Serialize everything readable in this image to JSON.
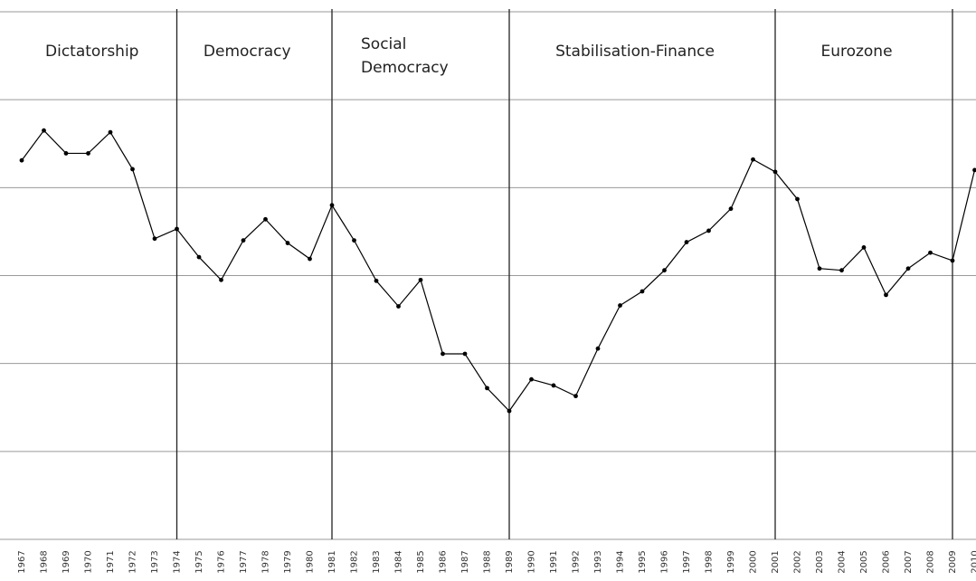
{
  "chart_data": {
    "type": "line",
    "x": [
      1967,
      1968,
      1969,
      1970,
      1971,
      1972,
      1973,
      1974,
      1975,
      1976,
      1977,
      1978,
      1979,
      1980,
      1981,
      1982,
      1983,
      1984,
      1985,
      1986,
      1987,
      1988,
      1989,
      1990,
      1991,
      1992,
      1993,
      1994,
      1995,
      1996,
      1997,
      1998,
      1999,
      2000,
      2001,
      2002,
      2003,
      2004,
      2005,
      2006,
      2007,
      2008,
      2009,
      2010
    ],
    "series": [
      {
        "color": "#000000",
        "values": [
          4.31,
          4.65,
          4.39,
          4.39,
          4.63,
          4.21,
          3.42,
          3.53,
          3.21,
          2.95,
          3.4,
          3.64,
          3.37,
          3.19,
          3.8,
          3.4,
          2.94,
          2.65,
          2.95,
          2.11,
          2.11,
          1.72,
          1.46,
          1.82,
          1.75,
          1.63,
          2.17,
          2.66,
          2.82,
          3.06,
          3.38,
          3.51,
          3.76,
          4.32,
          4.18,
          3.87,
          3.08,
          3.06,
          3.32,
          2.78,
          3.08,
          3.26,
          3.17,
          4.2
        ]
      }
    ],
    "xlim": [
      1967,
      2010
    ],
    "ylim": [
      0,
      6
    ],
    "yticks": [
      0,
      1,
      2,
      3,
      4,
      5,
      6
    ],
    "grid": true,
    "dividers": [
      1974,
      1981,
      1989,
      2001,
      2009
    ],
    "period_labels": [
      "Dictatorship",
      "Democracy",
      "Social Democracy",
      "Stabilisation-Finance",
      "Eurozone"
    ]
  }
}
